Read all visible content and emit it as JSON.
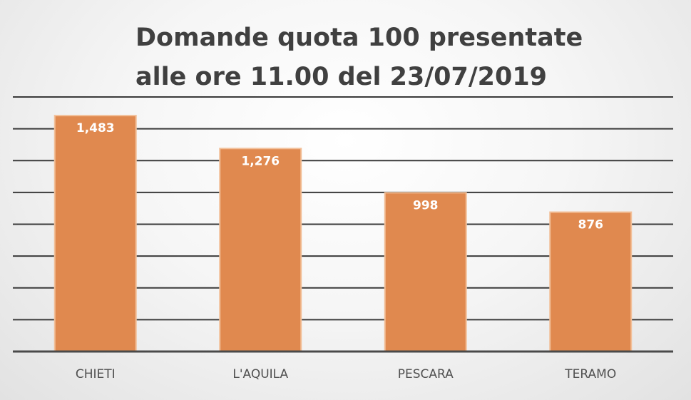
{
  "chart_data": {
    "type": "bar",
    "title_lines": [
      "Domande quota 100 presentate",
      "alle ore 11.00 del 23/07/2019"
    ],
    "categories": [
      "CHIETI",
      "L'AQUILA",
      "PESCARA",
      "TERAMO"
    ],
    "values": [
      1483,
      1276,
      998,
      876
    ],
    "data_labels": [
      "1,483",
      "1,276",
      "998",
      "876"
    ],
    "ylim": [
      0,
      1600
    ],
    "gridline_step": 200,
    "grid": true,
    "legend": "none",
    "xlabel": "",
    "ylabel": "",
    "colors": {
      "bar": "#e0894f",
      "bar_border": "#f2bf98",
      "gridline": "#3a3a3a",
      "title": "#404040",
      "data_label": "#ffffff",
      "tick_label": "#505050"
    }
  }
}
